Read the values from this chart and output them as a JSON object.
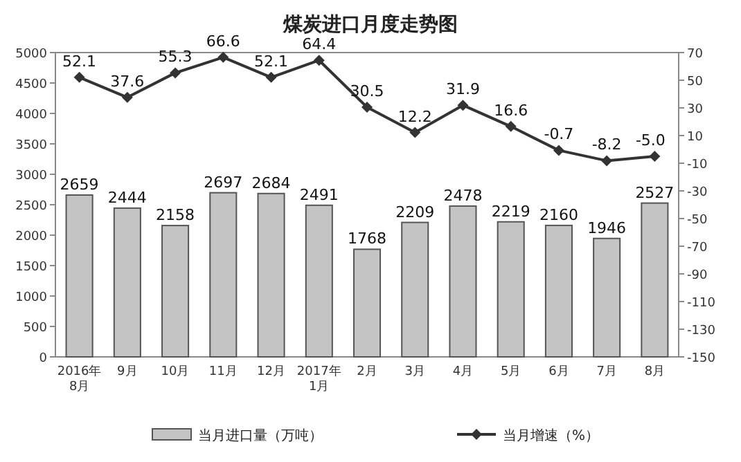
{
  "chart_data": {
    "type": "bar",
    "title": "煤炭进口月度走势图",
    "categories": [
      "2016年\n8月",
      "9月",
      "10月",
      "11月",
      "12月",
      "2017年\n1月",
      "2月",
      "3月",
      "4月",
      "5月",
      "6月",
      "7月",
      "8月"
    ],
    "series": [
      {
        "name": "当月进口量（万吨）",
        "color": "#c4c4c4",
        "values": [
          2659,
          2444,
          2158,
          2697,
          2684,
          2491,
          1768,
          2209,
          2478,
          2219,
          2160,
          1946,
          2527
        ],
        "value_labels": [
          "2659",
          "2444",
          "2158",
          "2697",
          "2684",
          "2491",
          "1768",
          "2209",
          "2478",
          "2219",
          "2160",
          "1946",
          "2527"
        ]
      },
      {
        "name": "当月增速（%）",
        "type": "line",
        "axis": "y2",
        "color": "#333333",
        "marker": "diamond",
        "values": [
          52.1,
          37.6,
          55.3,
          66.6,
          52.1,
          64.4,
          30.5,
          12.2,
          31.9,
          16.6,
          -0.7,
          -8.2,
          -5.0
        ],
        "value_labels": [
          "52.1",
          "37.6",
          "55.3",
          "66.6",
          "52.1",
          "64.4",
          "30.5",
          "12.2",
          "31.9",
          "16.6",
          "-0.7",
          "-8.2",
          "-5.0"
        ]
      }
    ],
    "ylim": [
      0,
      5000
    ],
    "yticks": [
      0,
      500,
      1000,
      1500,
      2000,
      2500,
      3000,
      3500,
      4000,
      4500,
      5000
    ],
    "y2lim": [
      -150,
      70
    ],
    "y2ticks": [
      -150,
      -130,
      -110,
      -90,
      -70,
      -50,
      -30,
      -10,
      10,
      30,
      50,
      70
    ],
    "legend": "bottom"
  }
}
